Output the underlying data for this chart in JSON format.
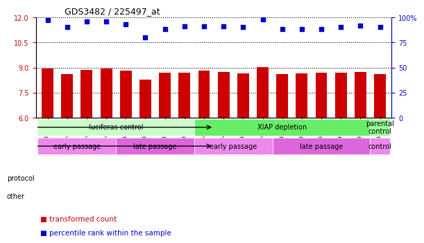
{
  "title": "GDS3482 / 225497_at",
  "samples": [
    "GSM294802",
    "GSM294803",
    "GSM294804",
    "GSM294805",
    "GSM294814",
    "GSM294815",
    "GSM294816",
    "GSM294817",
    "GSM294806",
    "GSM294807",
    "GSM294808",
    "GSM294809",
    "GSM294810",
    "GSM294811",
    "GSM294812",
    "GSM294813",
    "GSM294818",
    "GSM294819"
  ],
  "bar_values": [
    8.95,
    8.62,
    8.85,
    8.95,
    8.83,
    8.28,
    8.68,
    8.68,
    8.82,
    8.73,
    8.65,
    9.03,
    8.61,
    8.65,
    8.7,
    8.7,
    8.72,
    8.62
  ],
  "dot_values": [
    97,
    90,
    96,
    96,
    93,
    80,
    88,
    91,
    91,
    91,
    90,
    98,
    88,
    88,
    88,
    90,
    92,
    90
  ],
  "ylim_left": [
    6,
    12
  ],
  "ylim_right": [
    0,
    100
  ],
  "yticks_left": [
    6,
    7.5,
    9,
    10.5,
    12
  ],
  "yticks_right": [
    0,
    25,
    50,
    75,
    100
  ],
  "ytick_labels_right": [
    "0",
    "25",
    "50",
    "75",
    "100%"
  ],
  "bar_color": "#cc0000",
  "dot_color": "#0000cc",
  "bar_bottom": 6,
  "protocol_groups": [
    {
      "label": "luciferas control",
      "start": 0,
      "end": 8,
      "color": "#ccffcc"
    },
    {
      "label": "XIAP depletion",
      "start": 8,
      "end": 17,
      "color": "#66ee66"
    },
    {
      "label": "parental\ncontrol",
      "start": 17,
      "end": 18,
      "color": "#99ff99"
    }
  ],
  "other_groups": [
    {
      "label": "early passage",
      "start": 0,
      "end": 4,
      "color": "#ee88ee"
    },
    {
      "label": "late passage",
      "start": 4,
      "end": 8,
      "color": "#dd66dd"
    },
    {
      "label": "early passage",
      "start": 8,
      "end": 12,
      "color": "#ee88ee"
    },
    {
      "label": "late passage",
      "start": 12,
      "end": 17,
      "color": "#dd66dd"
    },
    {
      "label": "control",
      "start": 17,
      "end": 18,
      "color": "#ee88ee"
    }
  ],
  "legend_bar_label": "transformed count",
  "legend_dot_label": "percentile rank within the sample",
  "protocol_label": "protocol",
  "other_label": "other",
  "background_color": "#ffffff",
  "grid_color": "#000000",
  "tick_label_color_left": "#cc0000",
  "tick_label_color_right": "#0000cc"
}
